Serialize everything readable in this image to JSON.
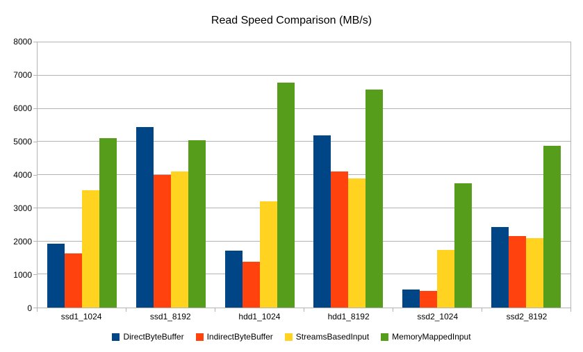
{
  "chart_data": {
    "type": "bar",
    "title": "Read Speed Comparison (MB/s)",
    "categories": [
      "ssd1_1024",
      "ssd1_8192",
      "hdd1_1024",
      "hdd1_8192",
      "ssd2_1024",
      "ssd2_8192"
    ],
    "series": [
      {
        "name": "DirectByteBuffer",
        "color": "#004586",
        "values": [
          1920,
          5450,
          1720,
          5200,
          540,
          2440
        ]
      },
      {
        "name": "IndirectByteBuffer",
        "color": "#FF420E",
        "values": [
          1630,
          4000,
          1380,
          4100,
          500,
          2150
        ]
      },
      {
        "name": "StreamsBasedInput",
        "color": "#FFD320",
        "values": [
          3550,
          4100,
          3200,
          3900,
          1730,
          2100
        ]
      },
      {
        "name": "MemoryMappedInput",
        "color": "#579D1C",
        "values": [
          5100,
          5050,
          6780,
          6570,
          3750,
          4880
        ]
      }
    ],
    "ylim": [
      0,
      8000
    ],
    "ytick_step": 1000,
    "ytick_labels": [
      "0",
      "1000",
      "2000",
      "3000",
      "4000",
      "5000",
      "6000",
      "7000",
      "8000"
    ],
    "grid": true,
    "gridline_color": "#b3b3b3",
    "axis_color": "#b3b3b3",
    "text_color": "#000000",
    "background_color": "#ffffff",
    "legend_position": "bottom",
    "xlabel": "",
    "ylabel": ""
  }
}
